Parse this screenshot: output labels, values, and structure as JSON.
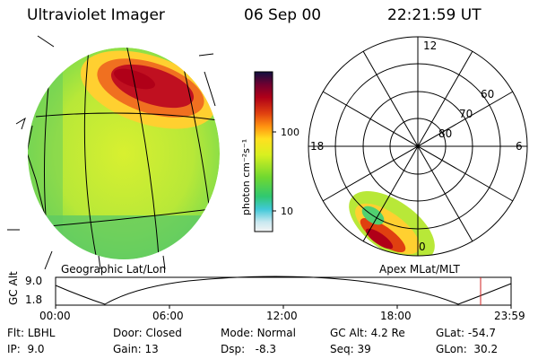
{
  "header": {
    "title": "Ultraviolet Imager",
    "date": "06 Sep 00",
    "time": "22:21:59 UT"
  },
  "colorbar": {
    "label": "photon cm⁻²s⁻¹",
    "ticks": [
      "100",
      "10"
    ],
    "scale": "log"
  },
  "polar": {
    "mlt_labels": [
      "12",
      "18",
      "6",
      "0"
    ],
    "lat_labels": [
      "60",
      "70",
      "80"
    ]
  },
  "panel_labels": {
    "left": "Geographic Lat/Lon",
    "right": "Apex  MLat/MLT"
  },
  "orbit": {
    "axis_label": "GC Alt",
    "ytick_top": "9.0",
    "ytick_bottom": "1.8",
    "xticks": [
      "00:00",
      "06:00",
      "12:00",
      "18:00",
      "23:59"
    ],
    "current_marker_color": "#d02020"
  },
  "status": {
    "flt_label": "Flt:",
    "flt_value": "LBHL",
    "ip_label": "IP:",
    "ip_value": "9.0",
    "door_label": "Door:",
    "door_value": "Closed",
    "gain_label": "Gain:",
    "gain_value": "13",
    "mode_label": "Mode:",
    "mode_value": "Normal",
    "dsp_label": "Dsp:",
    "dsp_value": "-8.3",
    "gcalt_label": "GC Alt:",
    "gcalt_value": "4.2 Re",
    "seq_label": "Seq:",
    "seq_value": "39",
    "glat_label": "GLat:",
    "glat_value": "-54.7",
    "glon_label": "GLon:",
    "glon_value": "30.2"
  }
}
